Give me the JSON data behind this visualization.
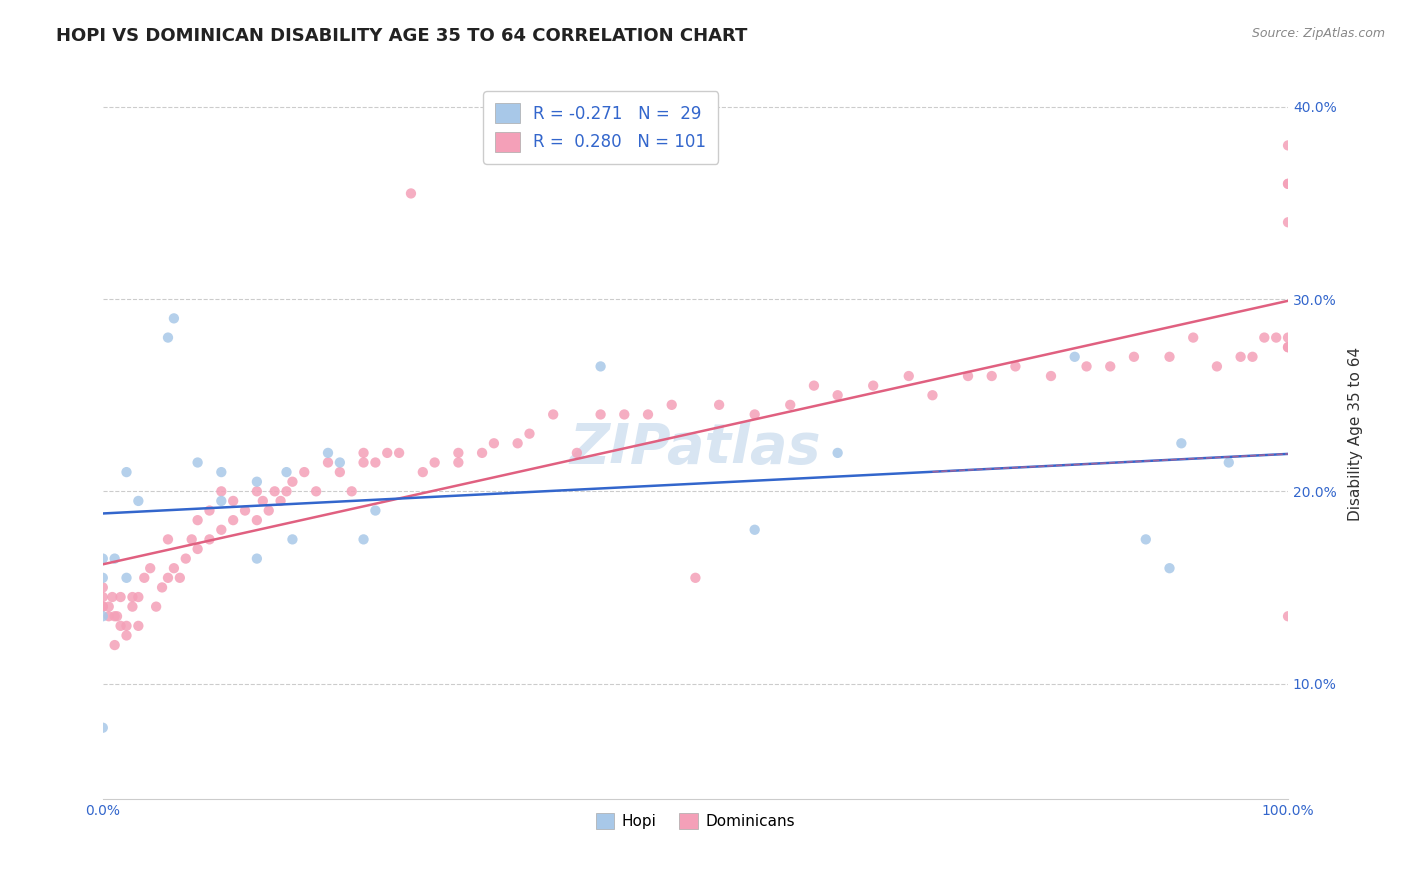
{
  "title": "HOPI VS DOMINICAN DISABILITY AGE 35 TO 64 CORRELATION CHART",
  "source": "Source: ZipAtlas.com",
  "xlabel": "",
  "ylabel": "Disability Age 35 to 64",
  "xlim": [
    0.0,
    1.0
  ],
  "ylim": [
    0.04,
    0.42
  ],
  "yticks": [
    0.1,
    0.2,
    0.3,
    0.4
  ],
  "ytick_labels": [
    "10.0%",
    "20.0%",
    "30.0%",
    "40.0%"
  ],
  "hopi_color": "#a8c8e8",
  "dominican_color": "#f4a0b8",
  "hopi_line_color": "#3366cc",
  "dominican_line_color": "#e06080",
  "legend_hopi_label": "R = -0.271   N =  29",
  "legend_dominican_label": "R =  0.280   N = 101",
  "hopi_R": -0.271,
  "dominican_R": 0.28,
  "hopi_x": [
    0.0,
    0.0,
    0.0,
    0.0,
    0.01,
    0.02,
    0.03,
    0.055,
    0.06,
    0.08,
    0.1,
    0.1,
    0.13,
    0.13,
    0.155,
    0.16,
    0.19,
    0.2,
    0.22,
    0.23,
    0.42,
    0.55,
    0.62,
    0.82,
    0.88,
    0.9,
    0.91,
    0.95,
    0.02
  ],
  "hopi_y": [
    0.077,
    0.135,
    0.155,
    0.165,
    0.165,
    0.155,
    0.195,
    0.28,
    0.29,
    0.215,
    0.195,
    0.21,
    0.205,
    0.165,
    0.21,
    0.175,
    0.22,
    0.215,
    0.175,
    0.19,
    0.265,
    0.18,
    0.22,
    0.27,
    0.175,
    0.16,
    0.225,
    0.215,
    0.21
  ],
  "dominican_x": [
    0.0,
    0.0,
    0.0,
    0.0,
    0.005,
    0.005,
    0.008,
    0.01,
    0.01,
    0.012,
    0.015,
    0.015,
    0.02,
    0.02,
    0.025,
    0.025,
    0.03,
    0.03,
    0.035,
    0.04,
    0.045,
    0.05,
    0.055,
    0.055,
    0.06,
    0.065,
    0.07,
    0.075,
    0.08,
    0.08,
    0.09,
    0.09,
    0.1,
    0.1,
    0.11,
    0.11,
    0.12,
    0.13,
    0.13,
    0.135,
    0.14,
    0.145,
    0.15,
    0.155,
    0.16,
    0.17,
    0.18,
    0.19,
    0.2,
    0.21,
    0.22,
    0.22,
    0.23,
    0.24,
    0.25,
    0.26,
    0.27,
    0.28,
    0.3,
    0.3,
    0.32,
    0.33,
    0.35,
    0.36,
    0.38,
    0.4,
    0.42,
    0.44,
    0.46,
    0.48,
    0.5,
    0.52,
    0.55,
    0.58,
    0.6,
    0.62,
    0.65,
    0.68,
    0.7,
    0.73,
    0.75,
    0.77,
    0.8,
    0.83,
    0.85,
    0.87,
    0.9,
    0.92,
    0.94,
    0.96,
    0.97,
    0.98,
    0.99,
    1.0,
    1.0,
    1.0,
    1.0,
    1.0,
    1.0,
    1.0,
    1.0
  ],
  "dominican_y": [
    0.14,
    0.14,
    0.145,
    0.15,
    0.135,
    0.14,
    0.145,
    0.12,
    0.135,
    0.135,
    0.13,
    0.145,
    0.125,
    0.13,
    0.14,
    0.145,
    0.13,
    0.145,
    0.155,
    0.16,
    0.14,
    0.15,
    0.155,
    0.175,
    0.16,
    0.155,
    0.165,
    0.175,
    0.17,
    0.185,
    0.175,
    0.19,
    0.18,
    0.2,
    0.195,
    0.185,
    0.19,
    0.185,
    0.2,
    0.195,
    0.19,
    0.2,
    0.195,
    0.2,
    0.205,
    0.21,
    0.2,
    0.215,
    0.21,
    0.2,
    0.215,
    0.22,
    0.215,
    0.22,
    0.22,
    0.355,
    0.21,
    0.215,
    0.22,
    0.215,
    0.22,
    0.225,
    0.225,
    0.23,
    0.24,
    0.22,
    0.24,
    0.24,
    0.24,
    0.245,
    0.155,
    0.245,
    0.24,
    0.245,
    0.255,
    0.25,
    0.255,
    0.26,
    0.25,
    0.26,
    0.26,
    0.265,
    0.26,
    0.265,
    0.265,
    0.27,
    0.27,
    0.28,
    0.265,
    0.27,
    0.27,
    0.28,
    0.28,
    0.275,
    0.275,
    0.28,
    0.135,
    0.34,
    0.36,
    0.38,
    0.36
  ],
  "watermark": "ZIPatlas",
  "background_color": "#ffffff",
  "grid_color": "#cccccc"
}
